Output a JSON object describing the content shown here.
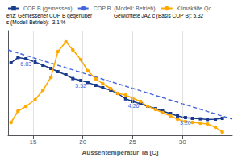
{
  "chart_data": {
    "type": "line",
    "xlabel": "Aussentemperatur Ta [C]",
    "xlim": [
      12.5,
      35
    ],
    "xticks": [
      15,
      20,
      25,
      30
    ],
    "ylim": [
      2.0,
      8.5
    ],
    "yticks": [],
    "tick_labels": "x",
    "grid": true,
    "legend": "top left",
    "series": [
      {
        "name": "COP B (gemessen)",
        "color": "#1a3a8c",
        "marker": "square",
        "line_style": "solid",
        "x": [
          12.8,
          13.5,
          14.3,
          15.2,
          16.0,
          16.8,
          17.5,
          18.3,
          19.0,
          19.8,
          20.5,
          21.3,
          22.0,
          22.8,
          23.5,
          24.3,
          25.0,
          25.8,
          26.5,
          27.3,
          28.0,
          28.8,
          29.5,
          30.3,
          31.0,
          31.8,
          32.5,
          33.3,
          34.0
        ],
        "values": [
          6.5,
          6.83,
          6.75,
          6.55,
          6.35,
          6.15,
          5.95,
          5.75,
          5.52,
          5.4,
          5.28,
          5.1,
          4.95,
          4.8,
          4.6,
          4.26,
          4.1,
          3.95,
          3.8,
          3.65,
          3.5,
          3.35,
          3.2,
          3.1,
          3.05,
          3.02,
          2.98,
          3.0,
          3.05
        ]
      },
      {
        "name": "COP B  (Modell: Betrieb)",
        "color": "#4466dd",
        "marker": "none",
        "line_style": "dashed",
        "x": [
          12.5,
          35.0
        ],
        "values": [
          7.3,
          3.0
        ]
      },
      {
        "name": "Klimakälte Qc",
        "color": "#ffaa00",
        "marker": "circle",
        "line_style": "solid",
        "x": [
          12.8,
          13.5,
          14.3,
          15.2,
          16.0,
          16.8,
          17.5,
          18.3,
          19.0,
          19.8,
          20.5,
          21.3,
          22.0,
          22.8,
          23.5,
          24.3,
          25.0,
          25.8,
          26.5,
          27.3,
          28.0,
          28.8,
          29.5,
          30.3,
          31.0,
          31.8,
          32.5,
          33.3,
          34.0
        ],
        "values": [
          2.8,
          3.5,
          3.8,
          4.2,
          4.8,
          5.6,
          7.2,
          7.8,
          7.3,
          6.7,
          6.0,
          5.5,
          5.2,
          4.9,
          4.6,
          4.5,
          4.3,
          4.1,
          3.8,
          3.6,
          3.4,
          3.2,
          3.0,
          2.85,
          2.8,
          2.75,
          2.7,
          2.5,
          2.2
        ]
      }
    ],
    "annotations": [
      {
        "text": "enz: Gemessener COP B gegenüber\ns (Modell Betrieb): -3.1 %"
      },
      {
        "text": "Gewichtete JAZ c (Basis COP B): 5.32"
      },
      {
        "text": "6.83",
        "x": 13.5,
        "y": 6.83
      },
      {
        "text": "5.52",
        "x": 19.0,
        "y": 5.52
      },
      {
        "text": "4.26",
        "x": 24.3,
        "y": 4.26
      },
      {
        "text": "3.20",
        "x": 29.5,
        "y": 3.2
      }
    ]
  }
}
